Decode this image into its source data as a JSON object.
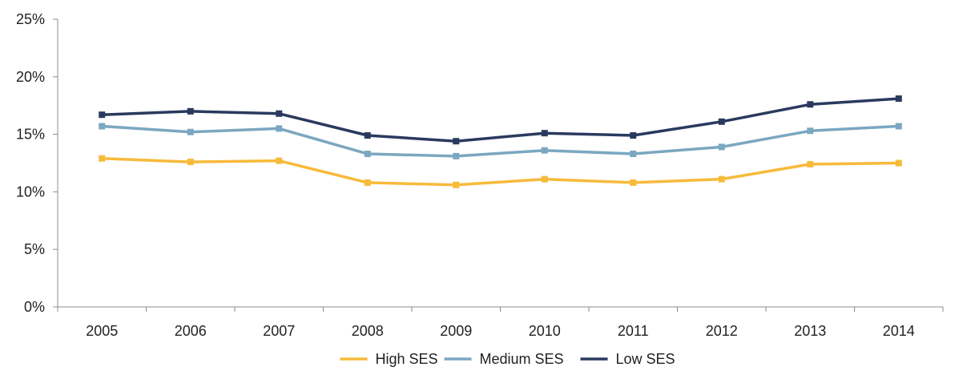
{
  "chart_data": {
    "type": "line",
    "title": "",
    "xlabel": "",
    "ylabel": "",
    "x": [
      "2005",
      "2006",
      "2007",
      "2008",
      "2009",
      "2010",
      "2011",
      "2012",
      "2013",
      "2014"
    ],
    "ylim": [
      0,
      25
    ],
    "yticks": [
      0,
      5,
      10,
      15,
      20,
      25
    ],
    "ytick_labels": [
      "0%",
      "5%",
      "10%",
      "15%",
      "20%",
      "25%"
    ],
    "grid": false,
    "legend_position": "bottom",
    "series": [
      {
        "name": "High SES",
        "color": "#F7BA3A",
        "values": [
          12.9,
          12.6,
          12.7,
          10.8,
          10.6,
          11.1,
          10.8,
          11.1,
          12.4,
          12.5
        ]
      },
      {
        "name": "Medium SES",
        "color": "#7BA7C0",
        "values": [
          15.7,
          15.2,
          15.5,
          13.3,
          13.1,
          13.6,
          13.3,
          13.9,
          15.3,
          15.7
        ]
      },
      {
        "name": "Low SES",
        "color": "#2A3A5E",
        "values": [
          16.7,
          17.0,
          16.8,
          14.9,
          14.4,
          15.1,
          14.9,
          16.1,
          17.6,
          18.1
        ]
      }
    ]
  }
}
